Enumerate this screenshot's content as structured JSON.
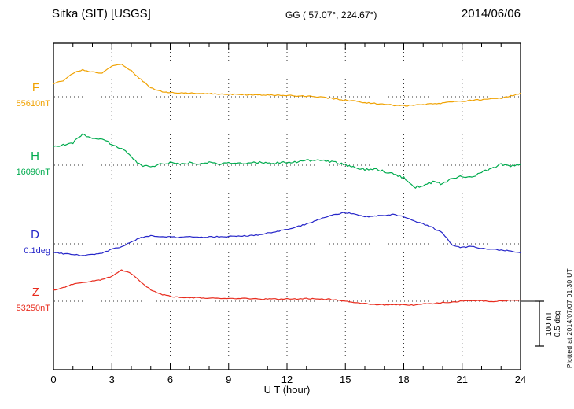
{
  "header": {
    "station_title": "Sitka (SIT)  [USGS]",
    "gg_coords": "GG ( 57.07°, 224.67°)",
    "date": "2014/06/06"
  },
  "channels": [
    {
      "letter": "F",
      "baseline_label": "55610nT",
      "color": "#f0a202"
    },
    {
      "letter": "H",
      "baseline_label": "16090nT",
      "color": "#00ab4e"
    },
    {
      "letter": "D",
      "baseline_label": "0.1deg",
      "color": "#2626c9"
    },
    {
      "letter": "Z",
      "baseline_label": "53250nT",
      "color": "#e82c1e"
    }
  ],
  "x_axis": {
    "label": "U T (hour)",
    "ticks": [
      0,
      3,
      6,
      9,
      12,
      15,
      18,
      21,
      24
    ],
    "minor_step": 1,
    "range": [
      0,
      24
    ]
  },
  "scale_bar": {
    "labels": [
      "100 nT",
      "0.5 deg"
    ]
  },
  "footer_note": "Plotted at 2014/07/07 01:30 UT",
  "chart_data": {
    "type": "line",
    "title": "Sitka (SIT) [USGS] magnetogram 2014/06/06",
    "xlabel": "U T (hour)",
    "x_range": [
      0,
      24
    ],
    "grid": "dotted at baselines and every 3 hours",
    "scale": {
      "nT_per_division": 100,
      "deg_per_division": 0.5
    },
    "x": [
      0,
      0.5,
      1,
      1.5,
      2,
      2.5,
      3,
      3.5,
      4,
      4.5,
      5,
      5.5,
      6,
      6.5,
      7,
      7.5,
      8,
      8.5,
      9,
      9.5,
      10,
      10.5,
      11,
      11.5,
      12,
      12.5,
      13,
      13.5,
      14,
      14.5,
      15,
      15.5,
      16,
      16.5,
      17,
      17.5,
      18,
      18.5,
      19,
      19.5,
      20,
      20.5,
      21,
      21.5,
      22,
      22.5,
      23,
      23.5,
      24
    ],
    "series": [
      {
        "name": "F",
        "units": "nT",
        "baseline": "55610nT",
        "color": "#f0a202",
        "values": [
          30,
          35,
          52,
          60,
          55,
          53,
          68,
          72,
          58,
          38,
          20,
          12,
          9,
          8,
          8,
          7,
          7,
          6,
          6,
          5,
          5,
          4,
          4,
          3,
          3,
          2,
          1,
          0,
          -2,
          -5,
          -8,
          -10,
          -13,
          -15,
          -17,
          -19,
          -20,
          -19,
          -18,
          -16,
          -14,
          -12,
          -10,
          -8,
          -7,
          -5,
          -3,
          2,
          8
        ]
      },
      {
        "name": "H",
        "units": "nT",
        "baseline": "16090nT",
        "color": "#00ab4e",
        "values": [
          40,
          46,
          50,
          68,
          58,
          60,
          45,
          38,
          18,
          0,
          -4,
          2,
          5,
          3,
          5,
          4,
          6,
          3,
          4,
          5,
          4,
          6,
          4,
          5,
          6,
          8,
          10,
          12,
          10,
          6,
          1,
          -6,
          -10,
          -8,
          -14,
          -20,
          -28,
          -50,
          -45,
          -38,
          -42,
          -30,
          -24,
          -28,
          -16,
          -8,
          2,
          -2,
          2
        ]
      },
      {
        "name": "D",
        "units": "deg",
        "baseline": "0.1deg",
        "color": "#2626c9",
        "values": [
          -0.09,
          -0.11,
          -0.12,
          -0.13,
          -0.12,
          -0.1,
          -0.06,
          -0.03,
          0.02,
          0.07,
          0.09,
          0.08,
          0.08,
          0.07,
          0.08,
          0.07,
          0.08,
          0.08,
          0.08,
          0.09,
          0.09,
          0.1,
          0.12,
          0.14,
          0.16,
          0.19,
          0.22,
          0.26,
          0.3,
          0.33,
          0.35,
          0.33,
          0.3,
          0.31,
          0.32,
          0.33,
          0.3,
          0.26,
          0.22,
          0.18,
          0.12,
          -0.02,
          -0.04,
          -0.03,
          -0.05,
          -0.06,
          -0.07,
          -0.08,
          -0.1
        ]
      },
      {
        "name": "Z",
        "units": "nT",
        "baseline": "53250nT",
        "color": "#e82c1e",
        "values": [
          25,
          30,
          38,
          42,
          45,
          48,
          56,
          70,
          62,
          42,
          26,
          16,
          11,
          9,
          8,
          8,
          7,
          7,
          6,
          6,
          6,
          5,
          5,
          5,
          5,
          5,
          6,
          5,
          5,
          3,
          0,
          -3,
          -5,
          -7,
          -8,
          -8,
          -8,
          -9,
          -6,
          -5,
          -3,
          -2,
          0,
          1,
          1,
          0,
          0,
          2,
          3
        ]
      }
    ]
  }
}
